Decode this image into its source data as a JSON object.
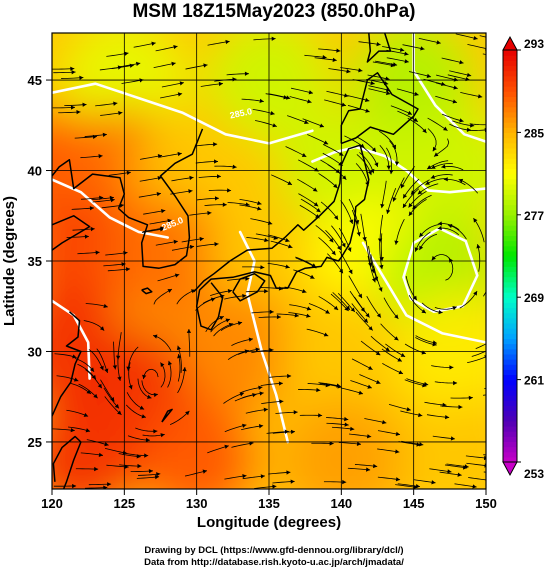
{
  "title": "MSM 18Z15May2023 (850.0hPa)",
  "xlabel": "Longitude (degrees)",
  "ylabel": "Latitude  (degrees)",
  "credits": [
    "Drawing by DCL (https://www.gfd-dennou.org/library/dcl/)",
    "Data from http://database.rish.kyoto-u.ac.jp/arch/jmadata/"
  ],
  "contour_labels": [
    "285.0",
    "285.0"
  ],
  "chart_data": {
    "type": "heatmap",
    "title": "MSM 18Z15May2023 (850.0hPa)",
    "xlabel": "Longitude (degrees)",
    "ylabel": "Latitude  (degrees)",
    "xlim": [
      120,
      150
    ],
    "ylim": [
      22.4,
      47.6
    ],
    "x_ticks": [
      120,
      125,
      130,
      135,
      140,
      145,
      150
    ],
    "y_ticks": [
      25,
      30,
      35,
      40,
      45
    ],
    "colorbar": {
      "ticks": [
        253,
        261,
        269,
        277,
        285,
        293
      ],
      "range": [
        253,
        293
      ],
      "colors": [
        "#c800c8",
        "#5000b4",
        "#0000ff",
        "#00a0ff",
        "#00ffc8",
        "#00e600",
        "#96f000",
        "#ffff00",
        "#ffb400",
        "#ff5000",
        "#e60000"
      ]
    },
    "temperature_field_K": [
      {
        "lon": 120,
        "lat": 45,
        "value": 284
      },
      {
        "lon": 125,
        "lat": 45,
        "value": 280
      },
      {
        "lon": 135,
        "lat": 45,
        "value": 279
      },
      {
        "lon": 145,
        "lat": 45,
        "value": 278
      },
      {
        "lon": 120,
        "lat": 40,
        "value": 289
      },
      {
        "lon": 125,
        "lat": 40,
        "value": 288
      },
      {
        "lon": 130,
        "lat": 40,
        "value": 284
      },
      {
        "lon": 140,
        "lat": 40,
        "value": 279
      },
      {
        "lon": 148,
        "lat": 40,
        "value": 279
      },
      {
        "lon": 122,
        "lat": 35,
        "value": 290
      },
      {
        "lon": 128,
        "lat": 35,
        "value": 288
      },
      {
        "lon": 135,
        "lat": 35,
        "value": 284
      },
      {
        "lon": 142,
        "lat": 35,
        "value": 281
      },
      {
        "lon": 147,
        "lat": 34,
        "value": 278
      },
      {
        "lon": 121,
        "lat": 30,
        "value": 291
      },
      {
        "lon": 126,
        "lat": 28,
        "value": 291
      },
      {
        "lon": 133,
        "lat": 30,
        "value": 287
      },
      {
        "lon": 140,
        "lat": 30,
        "value": 284
      },
      {
        "lon": 148,
        "lat": 30,
        "value": 282
      },
      {
        "lon": 122,
        "lat": 24,
        "value": 291
      },
      {
        "lon": 130,
        "lat": 24,
        "value": 289
      },
      {
        "lon": 140,
        "lat": 24,
        "value": 286
      },
      {
        "lon": 149,
        "lat": 24,
        "value": 284
      }
    ],
    "vortex_centers": [
      {
        "lon": 147,
        "lat": 34.3
      },
      {
        "lon": 127,
        "lat": 28.3
      }
    ]
  }
}
